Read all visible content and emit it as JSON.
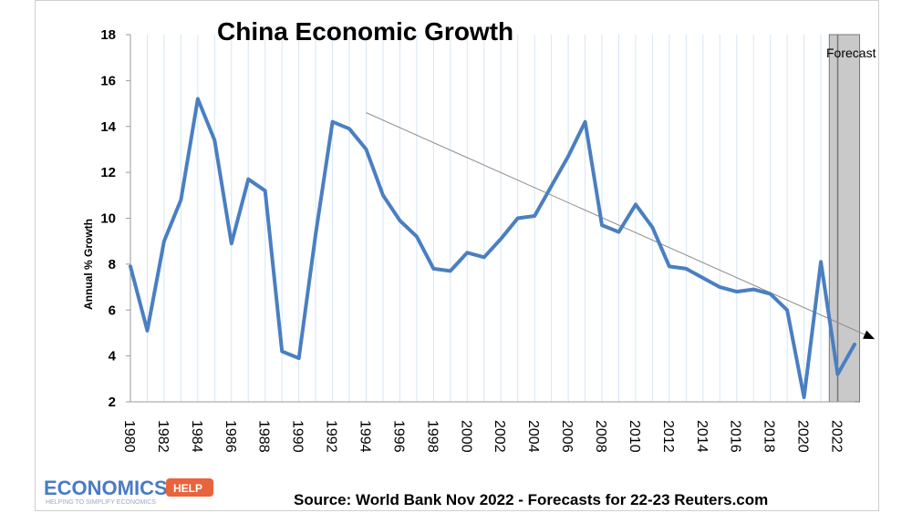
{
  "chart_data": {
    "type": "line",
    "title": "China Economic Growth",
    "ylabel": "Annual % Growth",
    "xlabel": "",
    "ylim": [
      2,
      18
    ],
    "yticks": [
      2,
      4,
      6,
      8,
      10,
      12,
      14,
      16,
      18
    ],
    "xlim": [
      1980,
      2023
    ],
    "xticks": [
      1980,
      1982,
      1984,
      1986,
      1988,
      1990,
      1992,
      1994,
      1996,
      1998,
      2000,
      2002,
      2004,
      2006,
      2008,
      2010,
      2012,
      2014,
      2016,
      2018,
      2020,
      2022
    ],
    "series": [
      {
        "name": "",
        "color": "#4a7fc1",
        "x": [
          1980,
          1981,
          1982,
          1983,
          1984,
          1985,
          1986,
          1987,
          1988,
          1989,
          1990,
          1991,
          1992,
          1993,
          1994,
          1995,
          1996,
          1997,
          1998,
          1999,
          2000,
          2001,
          2002,
          2003,
          2004,
          2005,
          2006,
          2007,
          2008,
          2009,
          2010,
          2011,
          2012,
          2013,
          2014,
          2015,
          2016,
          2017,
          2018,
          2019,
          2020,
          2021,
          2022,
          2023
        ],
        "values": [
          7.9,
          5.1,
          9.0,
          10.8,
          15.2,
          13.4,
          8.9,
          11.7,
          11.2,
          4.2,
          3.9,
          9.3,
          14.2,
          13.9,
          13.0,
          11.0,
          9.9,
          9.2,
          7.8,
          7.7,
          8.5,
          8.3,
          9.1,
          10.0,
          10.1,
          11.4,
          12.7,
          14.2,
          9.7,
          9.4,
          10.6,
          9.6,
          7.9,
          7.8,
          7.4,
          7.0,
          6.8,
          6.9,
          6.7,
          6.0,
          2.2,
          8.1,
          3.2,
          4.5
        ]
      }
    ],
    "trendline": {
      "from": [
        1994,
        14.6
      ],
      "to": [
        2024,
        4.8
      ]
    },
    "forecast_region": {
      "from": 2021.5,
      "to": 2023.3,
      "label": "Forecast"
    },
    "grid": "vertical",
    "source": "Source: World Bank Nov 2022 - Forecasts for 22-23 Reuters.com"
  },
  "logo": {
    "brand": "ECONOMICS",
    "badge": "HELP",
    "tagline": "HELPING TO SIMPLIFY ECONOMICS"
  }
}
